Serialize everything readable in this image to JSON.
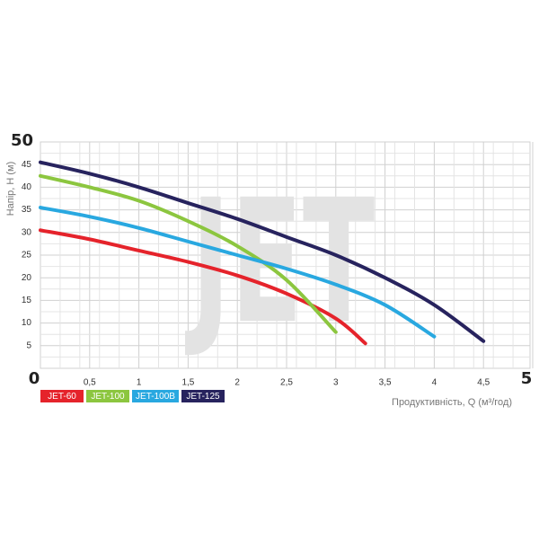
{
  "chart_data": {
    "type": "line",
    "watermark": "JET",
    "y_label": "Напір, Н (м)",
    "x_label": "Продуктивність, Q (м³/год)",
    "xlim": [
      0,
      5
    ],
    "ylim": [
      0,
      50
    ],
    "xticks": [
      0,
      {
        "value": 0.5,
        "label": "0,5"
      },
      1,
      {
        "value": 1.5,
        "label": "1,5"
      },
      2,
      {
        "value": 2.5,
        "label": "2,5"
      },
      3,
      {
        "value": 3.5,
        "label": "3,5"
      },
      4,
      {
        "value": 4.5,
        "label": "4,5"
      },
      5
    ],
    "yticks": [
      5,
      10,
      15,
      20,
      25,
      30,
      35,
      40,
      45,
      50
    ],
    "grid": true,
    "legend": "bottom-left",
    "series": [
      {
        "name": "JET-60",
        "color": "#e5232b",
        "x": [
          0,
          0.5,
          1,
          1.5,
          2,
          2.5,
          3,
          3.3
        ],
        "values": [
          30.5,
          28.5,
          26,
          23.5,
          20.5,
          16.5,
          11,
          5.5
        ]
      },
      {
        "name": "JET-100",
        "color": "#8cc63f",
        "x": [
          0,
          0.5,
          1,
          1.5,
          2,
          2.5,
          3
        ],
        "values": [
          42.5,
          40,
          37,
          32.5,
          27,
          19.5,
          8
        ]
      },
      {
        "name": "JET-100B",
        "color": "#29a8e0",
        "x": [
          0,
          0.5,
          1,
          1.5,
          2,
          2.5,
          3,
          3.5,
          4
        ],
        "values": [
          35.5,
          33.5,
          31,
          28,
          25,
          22,
          18.5,
          14,
          7
        ]
      },
      {
        "name": "JET-125",
        "color": "#27235e",
        "x": [
          0,
          0.5,
          1,
          1.5,
          2,
          2.5,
          3,
          3.5,
          4,
          4.5
        ],
        "values": [
          45.5,
          43,
          40,
          36.5,
          33,
          29,
          25,
          20,
          14,
          6
        ]
      }
    ]
  }
}
